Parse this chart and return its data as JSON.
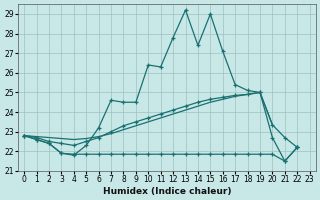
{
  "xlabel": "Humidex (Indice chaleur)",
  "background_color": "#c8e8e8",
  "grid_color": "#a0c0c0",
  "line_color": "#1a7070",
  "xlim": [
    -0.5,
    23.5
  ],
  "ylim": [
    21,
    29.5
  ],
  "yticks": [
    21,
    22,
    23,
    24,
    25,
    26,
    27,
    28,
    29
  ],
  "xticks": [
    0,
    1,
    2,
    3,
    4,
    5,
    6,
    7,
    8,
    9,
    10,
    11,
    12,
    13,
    14,
    15,
    16,
    17,
    18,
    19,
    20,
    21,
    22,
    23
  ],
  "line1_x": [
    0,
    1,
    2,
    3,
    4,
    5,
    6,
    7,
    8,
    9,
    10,
    11,
    12,
    13,
    14,
    15,
    16,
    17,
    18,
    19,
    20,
    21,
    22
  ],
  "line1_y": [
    22.8,
    22.6,
    22.4,
    21.9,
    21.8,
    22.3,
    23.2,
    24.6,
    24.5,
    24.5,
    26.4,
    26.3,
    27.8,
    29.2,
    27.4,
    29.0,
    27.1,
    25.4,
    25.1,
    25.0,
    22.7,
    21.5,
    22.2
  ],
  "line2_x": [
    0,
    1,
    2,
    3,
    4,
    5,
    6,
    7,
    8,
    9,
    10,
    11,
    12,
    13,
    14,
    15,
    16,
    17,
    18,
    19,
    20,
    21,
    22
  ],
  "line2_y": [
    22.8,
    22.6,
    22.4,
    21.9,
    21.85,
    21.85,
    21.85,
    21.85,
    21.85,
    21.85,
    21.85,
    21.85,
    21.85,
    21.85,
    21.85,
    21.85,
    21.85,
    21.85,
    21.85,
    21.85,
    21.85,
    21.5,
    22.2
  ],
  "line3_x": [
    0,
    1,
    2,
    3,
    4,
    5,
    6,
    7,
    8,
    9,
    10,
    11,
    12,
    13,
    14,
    15,
    16,
    17,
    18,
    19,
    20,
    21,
    22
  ],
  "line3_y": [
    22.8,
    22.7,
    22.5,
    22.4,
    22.3,
    22.5,
    22.7,
    23.0,
    23.3,
    23.5,
    23.7,
    23.9,
    24.1,
    24.3,
    24.5,
    24.65,
    24.75,
    24.85,
    24.9,
    25.0,
    23.35,
    22.7,
    22.2
  ],
  "line4_x": [
    0,
    1,
    2,
    3,
    4,
    5,
    6,
    7,
    8,
    9,
    10,
    11,
    12,
    13,
    14,
    15,
    16,
    17,
    18,
    19,
    20
  ],
  "line4_y": [
    22.8,
    22.75,
    22.7,
    22.65,
    22.6,
    22.65,
    22.75,
    22.9,
    23.1,
    23.3,
    23.5,
    23.7,
    23.9,
    24.1,
    24.3,
    24.5,
    24.65,
    24.8,
    24.9,
    25.0,
    23.35
  ]
}
